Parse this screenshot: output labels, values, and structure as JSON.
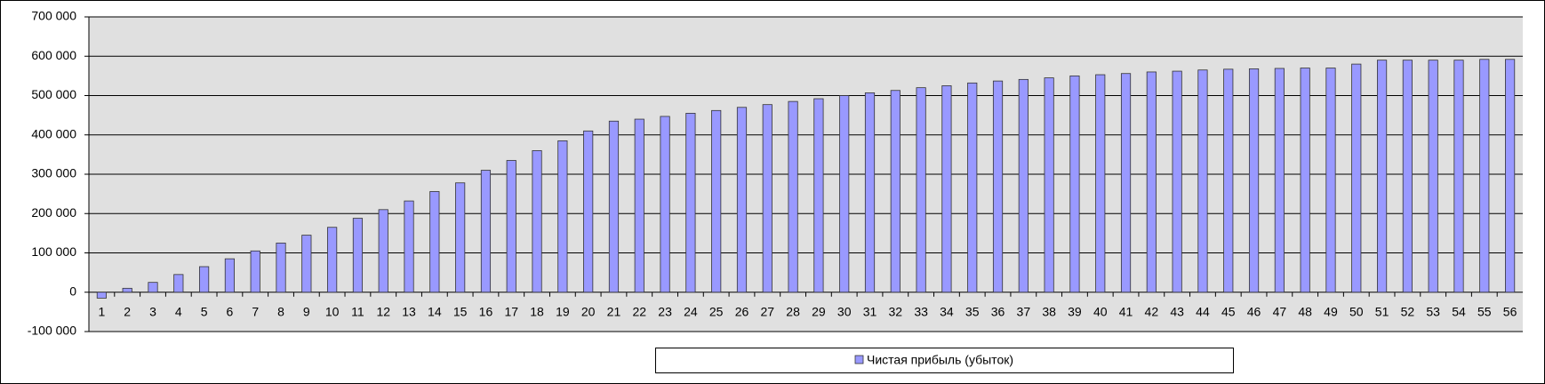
{
  "chart_data": {
    "type": "bar",
    "categories": [
      1,
      2,
      3,
      4,
      5,
      6,
      7,
      8,
      9,
      10,
      11,
      12,
      13,
      14,
      15,
      16,
      17,
      18,
      19,
      20,
      21,
      22,
      23,
      24,
      25,
      26,
      27,
      28,
      29,
      30,
      31,
      32,
      33,
      34,
      35,
      36,
      37,
      38,
      39,
      40,
      41,
      42,
      43,
      44,
      45,
      46,
      47,
      48,
      49,
      50,
      51,
      52,
      53,
      54,
      55,
      56
    ],
    "series": [
      {
        "name": "Чистая прибыль (убыток)",
        "color": "#9999ff",
        "values": [
          -15000,
          10000,
          25000,
          45000,
          65000,
          85000,
          105000,
          125000,
          145000,
          165000,
          188000,
          210000,
          232000,
          256000,
          278000,
          310000,
          335000,
          360000,
          385000,
          410000,
          435000,
          440000,
          447000,
          455000,
          462000,
          470000,
          477000,
          485000,
          492000,
          500000,
          507000,
          513000,
          520000,
          525000,
          532000,
          537000,
          541000,
          545000,
          550000,
          553000,
          556000,
          560000,
          562000,
          565000,
          567000,
          568000,
          569000,
          570000,
          570000,
          580000,
          590000,
          590000,
          590000,
          590000,
          592000,
          592000
        ]
      }
    ],
    "ylim": [
      -100000,
      700000
    ],
    "yticks": [
      {
        "value": -100000,
        "label": "-100 000"
      },
      0,
      {
        "value": 100000,
        "label": "100 000"
      },
      {
        "value": 200000,
        "label": "200 000"
      },
      {
        "value": 300000,
        "label": "300 000"
      },
      {
        "value": 400000,
        "label": "400 000"
      },
      {
        "value": 500000,
        "label": "500 000"
      },
      {
        "value": 600000,
        "label": "600 000"
      },
      {
        "value": 700000,
        "label": "700 000"
      }
    ],
    "grid": true,
    "legend": "bottom"
  }
}
